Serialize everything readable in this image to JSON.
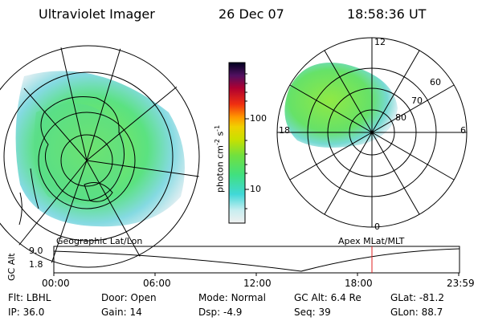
{
  "header": {
    "instrument": "Ultraviolet Imager",
    "date": "26 Dec 07",
    "time": "18:58:36 UT"
  },
  "colorbar": {
    "label": "photon cm",
    "label_sup1": "-2",
    "label_mid": "s",
    "label_sup2": "-1",
    "ticks": [
      "100",
      "10"
    ]
  },
  "polar_plot": {
    "hour_labels": [
      "12",
      "18",
      "6",
      "0"
    ],
    "lat_labels": [
      "60",
      "70",
      "80"
    ]
  },
  "map_labels": {
    "left": "Geographic Lat/Lon",
    "right": "Apex MLat/MLT"
  },
  "altitude_plot": {
    "axis_label": "GC Alt",
    "y_ticks": [
      "9.0",
      "1.8"
    ],
    "x_ticks": [
      "00:00",
      "06:00",
      "12:00",
      "18:00",
      "23:59"
    ]
  },
  "info": [
    [
      {
        "label": "Flt:",
        "value": "LBHL"
      },
      {
        "label": "Door:",
        "value": "Open"
      },
      {
        "label": "Mode:",
        "value": "Normal"
      },
      {
        "label": "GC Alt:",
        "value": "6.4 Re"
      },
      {
        "label": "GLat:",
        "value": "-81.2"
      }
    ],
    [
      {
        "label": "IP:",
        "value": "36.0"
      },
      {
        "label": "Gain:",
        "value": "14"
      },
      {
        "label": "Dsp:",
        "value": "-4.9"
      },
      {
        "label": "Seq:",
        "value": "39"
      },
      {
        "label": "GLon:",
        "value": "88.7"
      }
    ]
  ]
}
